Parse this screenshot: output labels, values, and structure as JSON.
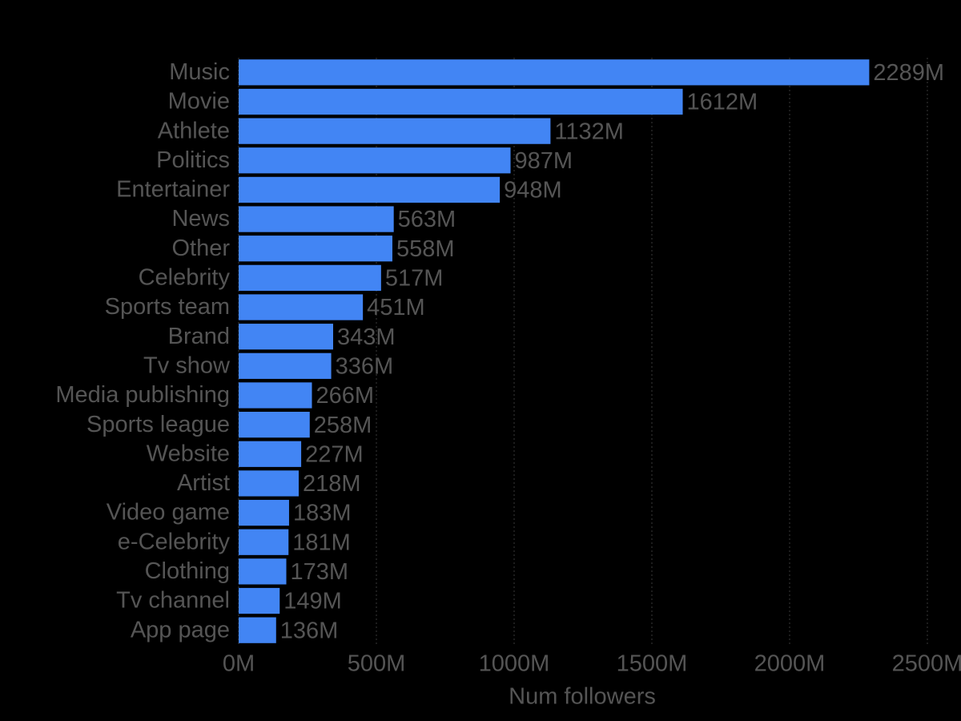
{
  "chart_data": {
    "type": "bar",
    "orientation": "horizontal",
    "x_label": "Num followers",
    "categories": [
      "Music",
      "Movie",
      "Athlete",
      "Politics",
      "Entertainer",
      "News",
      "Other",
      "Celebrity",
      "Sports team",
      "Brand",
      "Tv show",
      "Media publishing",
      "Sports league",
      "Website",
      "Artist",
      "Video game",
      "e-Celebrity",
      "Clothing",
      "Tv channel",
      "App page"
    ],
    "values": [
      2289,
      1612,
      1132,
      987,
      948,
      563,
      558,
      517,
      451,
      343,
      336,
      266,
      258,
      227,
      218,
      183,
      181,
      173,
      149,
      136
    ],
    "value_labels": [
      "2289M",
      "1612M",
      "1132M",
      "987M",
      "948M",
      "563M",
      "558M",
      "517M",
      "451M",
      "343M",
      "336M",
      "266M",
      "258M",
      "227M",
      "218M",
      "183M",
      "181M",
      "173M",
      "149M",
      "136M"
    ],
    "color": "#4285f4",
    "xlim": [
      0,
      2500
    ],
    "xticks": [
      {
        "value": 0,
        "label": "0M"
      },
      {
        "value": 500,
        "label": "500M"
      },
      {
        "value": 1000,
        "label": "1000M"
      },
      {
        "value": 1500,
        "label": "1500M"
      },
      {
        "value": 2000,
        "label": "2000M"
      },
      {
        "value": 2500,
        "label": "2500M"
      }
    ],
    "grid": true
  }
}
